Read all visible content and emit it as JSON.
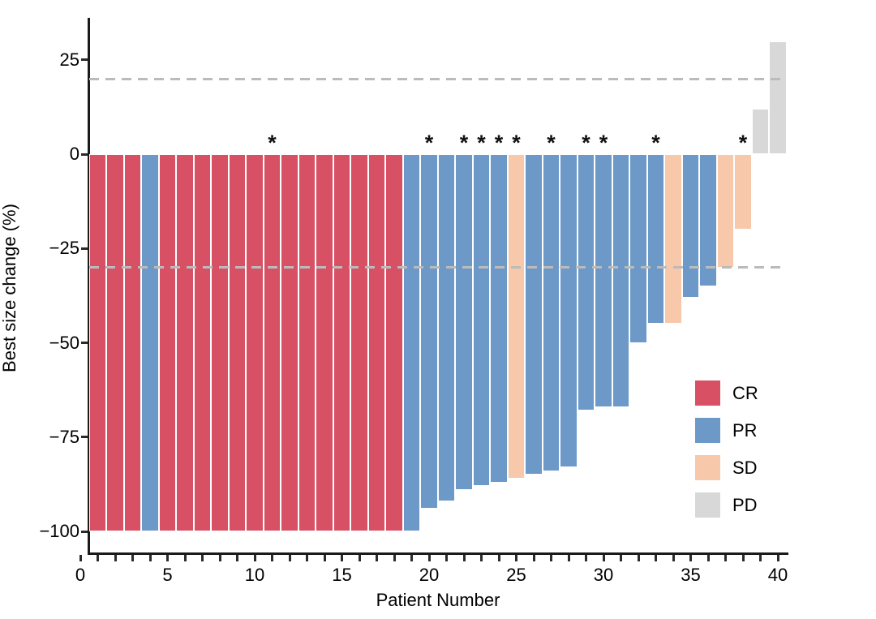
{
  "chart_data": {
    "type": "bar",
    "title": "",
    "xlabel": "Patient Number",
    "ylabel": "Best size change (%)",
    "x_axis": {
      "min": 0,
      "max": 40,
      "minor_tick_step": 1,
      "major_ticks": [
        0,
        5,
        10,
        15,
        20,
        25,
        30,
        35,
        40
      ],
      "major_tick_labels": [
        "0",
        "5",
        "10",
        "15",
        "20",
        "25",
        "30",
        "35",
        "40"
      ]
    },
    "y_axis": {
      "min": -100,
      "max": 25,
      "ticks": [
        25,
        0,
        -25,
        -50,
        -75,
        -100
      ],
      "tick_labels": [
        "25",
        "0",
        "−25",
        "−50",
        "−75",
        "−100"
      ]
    },
    "reference_lines": [
      {
        "value": 20,
        "style": "dashed",
        "color": "#bbbbbb"
      },
      {
        "value": -30,
        "style": "dashed",
        "color": "#bbbbbb"
      }
    ],
    "legend": [
      {
        "label": "CR",
        "color": "#d75064"
      },
      {
        "label": "PR",
        "color": "#6c99c7"
      },
      {
        "label": "SD",
        "color": "#f8c8aa"
      },
      {
        "label": "PD",
        "color": "#d8d8d8"
      }
    ],
    "star_symbol": "*",
    "grid": false,
    "legend_position": "inside-right",
    "patients": [
      {
        "n": 1,
        "value": -100,
        "response": "CR",
        "star": false
      },
      {
        "n": 2,
        "value": -100,
        "response": "CR",
        "star": false
      },
      {
        "n": 3,
        "value": -100,
        "response": "CR",
        "star": false
      },
      {
        "n": 4,
        "value": -100,
        "response": "PR",
        "star": false
      },
      {
        "n": 5,
        "value": -100,
        "response": "CR",
        "star": false
      },
      {
        "n": 6,
        "value": -100,
        "response": "CR",
        "star": false
      },
      {
        "n": 7,
        "value": -100,
        "response": "CR",
        "star": false
      },
      {
        "n": 8,
        "value": -100,
        "response": "CR",
        "star": false
      },
      {
        "n": 9,
        "value": -100,
        "response": "CR",
        "star": false
      },
      {
        "n": 10,
        "value": -100,
        "response": "CR",
        "star": false
      },
      {
        "n": 11,
        "value": -100,
        "response": "CR",
        "star": true
      },
      {
        "n": 12,
        "value": -100,
        "response": "CR",
        "star": false
      },
      {
        "n": 13,
        "value": -100,
        "response": "CR",
        "star": false
      },
      {
        "n": 14,
        "value": -100,
        "response": "CR",
        "star": false
      },
      {
        "n": 15,
        "value": -100,
        "response": "CR",
        "star": false
      },
      {
        "n": 16,
        "value": -100,
        "response": "CR",
        "star": false
      },
      {
        "n": 17,
        "value": -100,
        "response": "CR",
        "star": false
      },
      {
        "n": 18,
        "value": -100,
        "response": "CR",
        "star": false
      },
      {
        "n": 19,
        "value": -100,
        "response": "PR",
        "star": false
      },
      {
        "n": 20,
        "value": -94,
        "response": "PR",
        "star": true
      },
      {
        "n": 21,
        "value": -92,
        "response": "PR",
        "star": false
      },
      {
        "n": 22,
        "value": -89,
        "response": "PR",
        "star": true
      },
      {
        "n": 23,
        "value": -88,
        "response": "PR",
        "star": true
      },
      {
        "n": 24,
        "value": -87,
        "response": "PR",
        "star": true
      },
      {
        "n": 25,
        "value": -86,
        "response": "SD",
        "star": true
      },
      {
        "n": 26,
        "value": -85,
        "response": "PR",
        "star": false
      },
      {
        "n": 27,
        "value": -84,
        "response": "PR",
        "star": true
      },
      {
        "n": 28,
        "value": -83,
        "response": "PR",
        "star": false
      },
      {
        "n": 29,
        "value": -68,
        "response": "PR",
        "star": true
      },
      {
        "n": 30,
        "value": -67,
        "response": "PR",
        "star": true
      },
      {
        "n": 31,
        "value": -67,
        "response": "PR",
        "star": false
      },
      {
        "n": 32,
        "value": -50,
        "response": "PR",
        "star": false
      },
      {
        "n": 33,
        "value": -45,
        "response": "PR",
        "star": true
      },
      {
        "n": 34,
        "value": -45,
        "response": "SD",
        "star": false
      },
      {
        "n": 35,
        "value": -38,
        "response": "PR",
        "star": false
      },
      {
        "n": 36,
        "value": -35,
        "response": "PR",
        "star": false
      },
      {
        "n": 37,
        "value": -30,
        "response": "SD",
        "star": false
      },
      {
        "n": 38,
        "value": -20,
        "response": "SD",
        "star": true
      },
      {
        "n": 39,
        "value": 12,
        "response": "PD",
        "star": false
      },
      {
        "n": 40,
        "value": 30,
        "response": "PD",
        "star": false
      }
    ]
  }
}
